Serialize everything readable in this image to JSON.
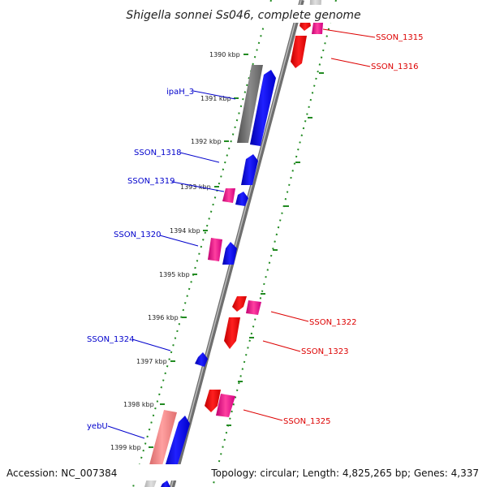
{
  "title": "Shigella sonnei Ss046, complete genome",
  "accession": "Accession: NC_007384",
  "topology": "Topology: circular; Length: 4,825,265 bp; Genes: 4,337",
  "colors": {
    "backbone": "#8c8c8c",
    "tick": "#228b22",
    "blue": "#0000ff",
    "red": "#ff0000",
    "pink": "#f0148c",
    "gray": "#707070",
    "salmon": "#f08080",
    "blue_label": "#0000cc",
    "red_label": "#dd0000"
  },
  "ticks": [
    {
      "label": "1390 kbp"
    },
    {
      "label": "1391 kbp"
    },
    {
      "label": "1392 kbp"
    },
    {
      "label": "1393 kbp"
    },
    {
      "label": "1394 kbp"
    },
    {
      "label": "1395 kbp"
    },
    {
      "label": "1396 kbp"
    },
    {
      "label": "1397 kbp"
    },
    {
      "label": "1398 kbp"
    },
    {
      "label": "1399 kbp"
    }
  ],
  "gene_labels_left": [
    {
      "label": "ipaH_3"
    },
    {
      "label": "SSON_1318"
    },
    {
      "label": "SSON_1319"
    },
    {
      "label": "SSON_1320"
    },
    {
      "label": "SSON_1324"
    },
    {
      "label": "yebU"
    }
  ],
  "gene_labels_right": [
    {
      "label": "SSON_1315"
    },
    {
      "label": "SSON_1316"
    },
    {
      "label": "SSON_1322"
    },
    {
      "label": "SSON_1323"
    },
    {
      "label": "SSON_1325"
    }
  ]
}
